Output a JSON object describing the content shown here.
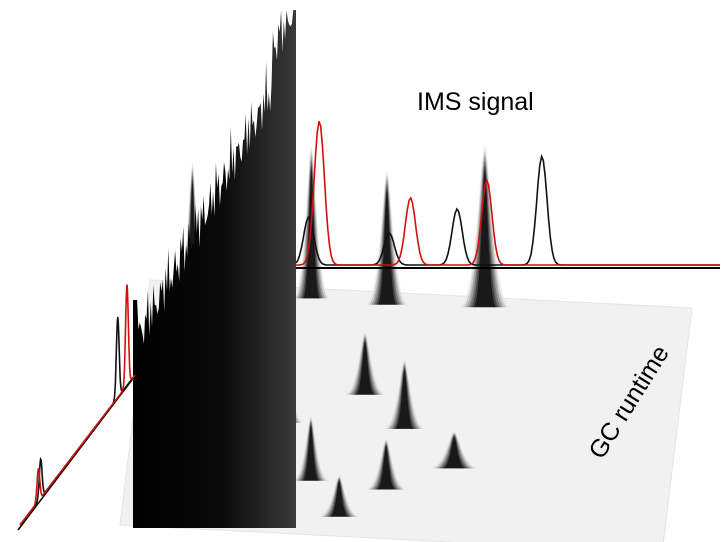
{
  "chart_data": {
    "type": "area",
    "xlabel": "IMS signal",
    "ylabel": "GC runtime",
    "grid": false,
    "legend": false,
    "colors": {
      "peaks": "#000000",
      "surface_light": "#d8d8d8",
      "spectrum_black": "#111111",
      "spectrum_red": "#d01010",
      "floor": "#f1f1f1"
    },
    "surface_peaks": [
      {
        "ims": 0.08,
        "gc": 0.03,
        "height": 0.55,
        "width": 0.018
      },
      {
        "ims": 0.18,
        "gc": 0.05,
        "height": 0.62,
        "width": 0.02
      },
      {
        "ims": 0.3,
        "gc": 0.04,
        "height": 0.66,
        "width": 0.022
      },
      {
        "ims": 0.44,
        "gc": 0.05,
        "height": 0.58,
        "width": 0.025
      },
      {
        "ims": 0.62,
        "gc": 0.04,
        "height": 0.7,
        "width": 0.03
      },
      {
        "ims": 0.15,
        "gc": 0.45,
        "height": 0.32,
        "width": 0.02
      },
      {
        "ims": 0.28,
        "gc": 0.55,
        "height": 0.35,
        "width": 0.022
      },
      {
        "ims": 0.42,
        "gc": 0.42,
        "height": 0.27,
        "width": 0.025
      },
      {
        "ims": 0.5,
        "gc": 0.55,
        "height": 0.3,
        "width": 0.025
      },
      {
        "ims": 0.16,
        "gc": 0.72,
        "height": 0.24,
        "width": 0.02
      },
      {
        "ims": 0.34,
        "gc": 0.78,
        "height": 0.28,
        "width": 0.022
      },
      {
        "ims": 0.48,
        "gc": 0.8,
        "height": 0.22,
        "width": 0.025
      },
      {
        "ims": 0.6,
        "gc": 0.7,
        "height": 0.16,
        "width": 0.03
      },
      {
        "ims": 0.22,
        "gc": 0.9,
        "height": 0.2,
        "width": 0.02
      },
      {
        "ims": 0.4,
        "gc": 0.92,
        "height": 0.18,
        "width": 0.025
      }
    ],
    "ims_spectrum": {
      "black": [
        {
          "x": 0.03,
          "y": 0.3
        },
        {
          "x": 0.22,
          "y": 0.2
        },
        {
          "x": 0.38,
          "y": 0.35
        },
        {
          "x": 0.58,
          "y": 0.68
        }
      ],
      "red": [
        {
          "x": 0.055,
          "y": 0.9
        },
        {
          "x": 0.27,
          "y": 0.42
        },
        {
          "x": 0.45,
          "y": 0.53
        }
      ]
    },
    "gc_chromatogram": {
      "black": [
        {
          "x": 0.18,
          "y": 0.3
        },
        {
          "x": 0.85,
          "y": 0.62
        }
      ],
      "red": [
        {
          "x": 0.16,
          "y": 0.25
        },
        {
          "x": 0.93,
          "y": 0.78
        }
      ]
    }
  }
}
